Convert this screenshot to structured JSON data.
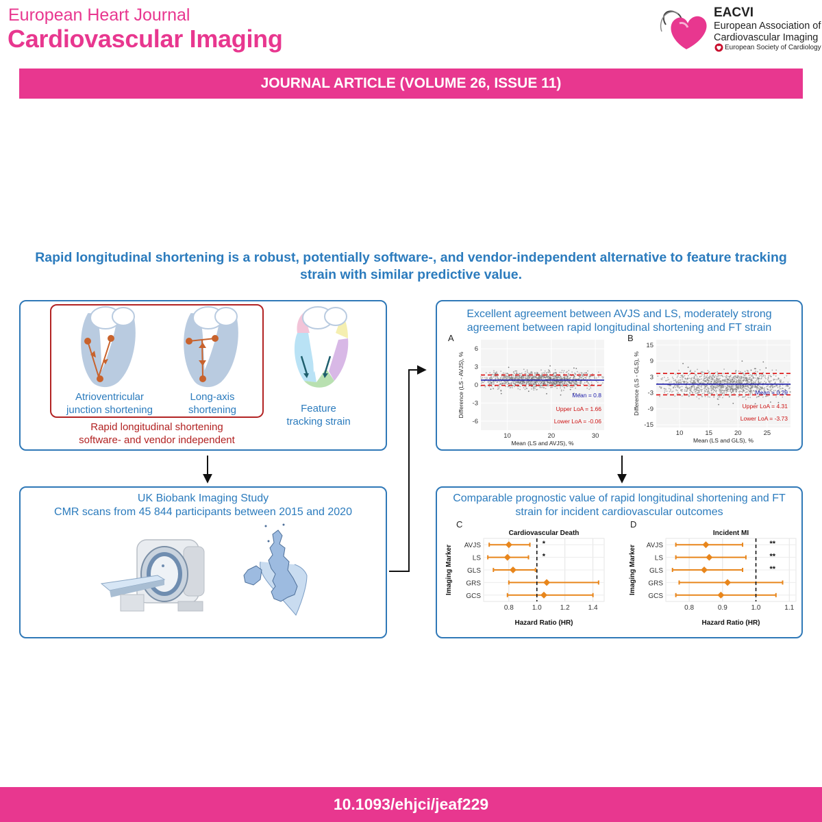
{
  "header": {
    "journal_line1": "European Heart Journal",
    "journal_line2": "Cardiovascular Imaging",
    "society_title": "EACVI",
    "society_line1": "European Association of",
    "society_line2": "Cardiovascular Imaging",
    "esc_label": "European Society of Cardiology"
  },
  "banner": "JOURNAL ARTICLE (VOLUME 26, ISSUE 11)",
  "headline": "Rapid longitudinal shortening is a robust, potentially software-, and vendor-independent alternative to feature tracking strain with similar predictive value.",
  "panel1": {
    "item1_line1": "Atrioventricular",
    "item1_line2": "junction shortening",
    "item2_line1": "Long-axis",
    "item2_line2": "shortening",
    "item3_line1": "Feature",
    "item3_line2": "tracking strain",
    "group_line1": "Rapid longitudinal shortening",
    "group_line2": "software- and vendor independent"
  },
  "panel2": {
    "line1": "UK Biobank Imaging Study",
    "line2": "CMR scans from 45 844 participants between 2015 and 2020"
  },
  "panel3": {
    "title_line1": "Excellent agreement between AVJS and LS, moderately strong",
    "title_line2": "agreement between rapid longitudinal shortening and FT strain"
  },
  "panel4": {
    "title_line1": "Comparable prognostic value of rapid longitudinal shortening and FT",
    "title_line2": "strain for incident cardiovascular outcomes"
  },
  "chart_data": [
    {
      "type": "scatter",
      "panel_label": "A",
      "xlabel": "Mean (LS and AVJS), %",
      "ylabel": "Difference (LS - AVJS), %",
      "xticks": [
        10,
        20,
        30
      ],
      "yticks": [
        6,
        3,
        0,
        -3,
        -6
      ],
      "xlim": [
        4,
        32
      ],
      "ylim": [
        -7.5,
        7.5
      ],
      "cloud": {
        "x_range": [
          6,
          28
        ],
        "center": 0.8,
        "spread": 0.6
      },
      "mean": 0.8,
      "upper_loa": 1.66,
      "lower_loa": -0.06,
      "mean_label": "Mean = 0.8",
      "upper_label": "Upper LoA = 1.66",
      "lower_label": "Lower LoA = -0.06"
    },
    {
      "type": "scatter",
      "panel_label": "B",
      "xlabel": "Mean (LS and GLS), %",
      "ylabel": "Difference (LS - GLS), %",
      "xticks": [
        10,
        15,
        20,
        25
      ],
      "yticks": [
        15,
        9,
        3,
        -3,
        -9,
        -15
      ],
      "xlim": [
        6,
        29
      ],
      "ylim": [
        -16,
        17
      ],
      "cloud": {
        "x_range": [
          9,
          27
        ],
        "center": 0.29,
        "spread": 2.0
      },
      "mean": 0.29,
      "upper_loa": 4.31,
      "lower_loa": -3.73,
      "mean_label": "Mean = 0.29",
      "upper_label": "Upper LoA = 4.31",
      "lower_label": "Lower LoA = -3.73"
    },
    {
      "type": "forest",
      "panel_label": "C",
      "title": "Cardiovascular Death",
      "xlabel": "Hazard Ratio (HR)",
      "ylabel": "Imaging Marker",
      "xticks": [
        0.8,
        1.0,
        1.2,
        1.4
      ],
      "xtick_labels": [
        "0.8",
        "1.0",
        "1.2",
        "1.4"
      ],
      "xlim": [
        0.62,
        1.48
      ],
      "reference": 1.0,
      "rows": [
        {
          "label": "AVJS",
          "hr": 0.8,
          "lo": 0.66,
          "hi": 0.95,
          "sig": "*"
        },
        {
          "label": "LS",
          "hr": 0.79,
          "lo": 0.65,
          "hi": 0.94,
          "sig": "*"
        },
        {
          "label": "GLS",
          "hr": 0.83,
          "lo": 0.69,
          "hi": 0.99,
          "sig": ""
        },
        {
          "label": "GRS",
          "hr": 1.07,
          "lo": 0.8,
          "hi": 1.44,
          "sig": ""
        },
        {
          "label": "GCS",
          "hr": 1.05,
          "lo": 0.79,
          "hi": 1.4,
          "sig": ""
        }
      ]
    },
    {
      "type": "forest",
      "panel_label": "D",
      "title": "Incident MI",
      "xlabel": "Hazard Ratio (HR)",
      "ylabel": "Imaging Marker",
      "xticks": [
        0.8,
        0.9,
        1.0,
        1.1
      ],
      "xtick_labels": [
        "0.8",
        "0.9",
        "1.0",
        "1.1"
      ],
      "xlim": [
        0.73,
        1.12
      ],
      "reference": 1.0,
      "rows": [
        {
          "label": "AVJS",
          "hr": 0.85,
          "lo": 0.76,
          "hi": 0.96,
          "sig": "**"
        },
        {
          "label": "LS",
          "hr": 0.86,
          "lo": 0.76,
          "hi": 0.97,
          "sig": "**"
        },
        {
          "label": "GLS",
          "hr": 0.845,
          "lo": 0.75,
          "hi": 0.96,
          "sig": "**"
        },
        {
          "label": "GRS",
          "hr": 0.915,
          "lo": 0.77,
          "hi": 1.08,
          "sig": ""
        },
        {
          "label": "GCS",
          "hr": 0.895,
          "lo": 0.76,
          "hi": 1.06,
          "sig": ""
        }
      ]
    }
  ],
  "doi": "10.1093/ehjci/jeaf229",
  "colors": {
    "brand_pink": "#e8378f",
    "panel_blue": "#2f78b7",
    "text_blue": "#2b7bbd",
    "red": "#b22222",
    "forest_orange": "#e8861c",
    "heart_fill": "#b9cbe0"
  }
}
